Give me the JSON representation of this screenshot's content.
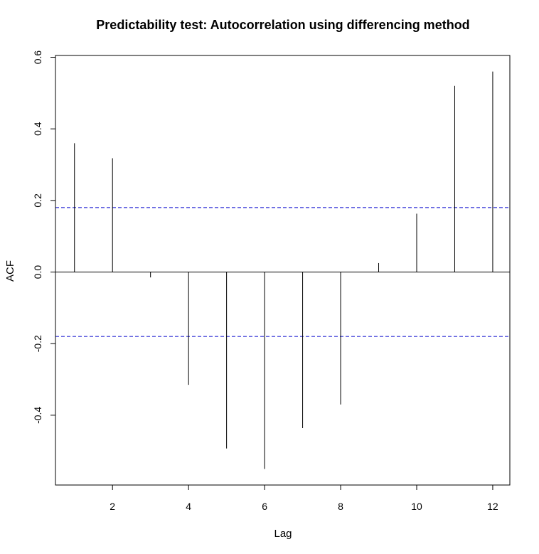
{
  "chart_data": {
    "type": "bar",
    "title": "Predictability test: Autocorrelation using differencing method",
    "xlabel": "Lag",
    "ylabel": "ACF",
    "x": [
      1,
      2,
      3,
      4,
      5,
      6,
      7,
      8,
      9,
      10,
      11,
      12
    ],
    "values": [
      0.36,
      0.318,
      -0.015,
      -0.315,
      -0.493,
      -0.55,
      -0.436,
      -0.37,
      0.025,
      0.163,
      0.52,
      0.56
    ],
    "xlim": [
      0.5,
      12.45
    ],
    "ylim": [
      -0.595,
      0.605
    ],
    "x_ticks": [
      2,
      4,
      6,
      8,
      10,
      12
    ],
    "y_ticks": [
      -0.4,
      -0.2,
      0.0,
      0.2,
      0.4,
      0.6
    ],
    "x_tick_labels": [
      "2",
      "4",
      "6",
      "8",
      "10",
      "12"
    ],
    "y_tick_labels": [
      "-0.4",
      "-0.2",
      "0.0",
      "0.2",
      "0.4",
      "0.6"
    ],
    "confidence_bound": 0.18,
    "grid": false,
    "colors": {
      "bars": "#000000",
      "confidence_lines": "#0000CC",
      "zero_line": "#000000"
    }
  }
}
